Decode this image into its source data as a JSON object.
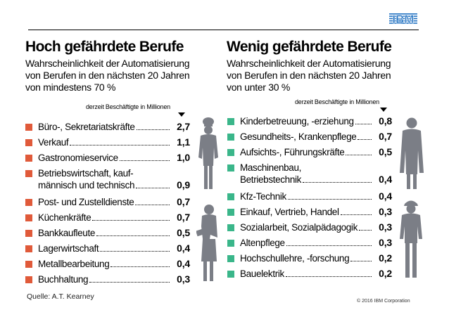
{
  "brand": {
    "logo_text": "IBM",
    "accent_red": "#e05a3a",
    "accent_green": "#3ab68a",
    "silhouette_color": "#7b7e86"
  },
  "left": {
    "title": "Hoch gefährdete Berufe",
    "subtitle_lines": [
      "Wahrscheinlichkeit der Automatisierung",
      "von Berufen in den nächsten 20 Jahren",
      "von mindestens 70 %"
    ],
    "column_header": "derzeit Beschäftigte in Millionen",
    "items": [
      {
        "lines": [
          "Büro-, Sekretariatskräfte"
        ],
        "value": "2,7"
      },
      {
        "lines": [
          "Verkauf"
        ],
        "value": "1,1"
      },
      {
        "lines": [
          "Gastronomieservice"
        ],
        "value": "1,0"
      },
      {
        "lines": [
          "Betriebswirtschaft, kauf-",
          "männisch und technisch"
        ],
        "value": "0,9"
      },
      {
        "lines": [
          "Post- und Zustelldienste"
        ],
        "value": "0,7"
      },
      {
        "lines": [
          "Küchenkräfte"
        ],
        "value": "0,7"
      },
      {
        "lines": [
          "Bankkaufleute"
        ],
        "value": "0,5"
      },
      {
        "lines": [
          "Lagerwirtschaft"
        ],
        "value": "0,4"
      },
      {
        "lines": [
          "Metallbearbeitung"
        ],
        "value": "0,4"
      },
      {
        "lines": [
          "Buchhaltung"
        ],
        "value": "0,3"
      }
    ]
  },
  "right": {
    "title": "Wenig gefährdete Berufe",
    "subtitle_lines": [
      "Wahrscheinlichkeit der Automatisierung",
      "von Berufen in den nächsten 20 Jahren",
      "von unter 30 %"
    ],
    "column_header": "derzeit Beschäftigte in Millionen",
    "items": [
      {
        "lines": [
          "Kinderbetreuung, -erziehung"
        ],
        "value": "0,8"
      },
      {
        "lines": [
          "Gesundheits-, Krankenpflege"
        ],
        "value": "0,7"
      },
      {
        "lines": [
          "Aufsichts-, Führungskräfte"
        ],
        "value": "0,5"
      },
      {
        "lines": [
          "Maschinenbau,",
          "Betriebstechnik"
        ],
        "value": "0,4"
      },
      {
        "lines": [
          "Kfz-Technik"
        ],
        "value": "0,4"
      },
      {
        "lines": [
          "Einkauf, Vertrieb, Handel"
        ],
        "value": "0,3"
      },
      {
        "lines": [
          "Sozialarbeit, Sozialpädagogik"
        ],
        "value": "0,3"
      },
      {
        "lines": [
          "Altenpflege"
        ],
        "value": "0,3"
      },
      {
        "lines": [
          "Hochschullehre, -forschung"
        ],
        "value": "0,2"
      },
      {
        "lines": [
          "Bauelektrik"
        ],
        "value": "0,2"
      }
    ]
  },
  "footer": {
    "source": "Quelle: A.T. Kearney",
    "copyright": "© 2016 IBM Corporation"
  }
}
